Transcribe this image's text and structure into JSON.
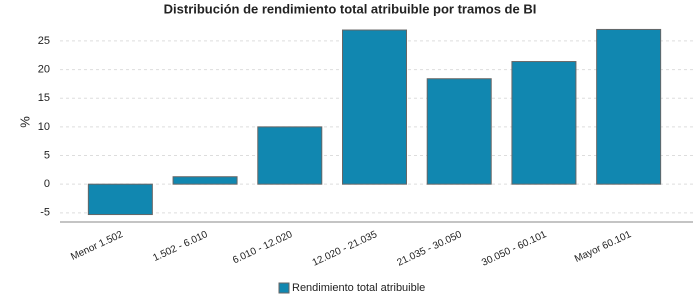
{
  "chart_data": {
    "type": "bar",
    "title": "Distribución de rendimiento total atribuible por tramos de BI",
    "y_label": "%",
    "categories": [
      "Menor 1.502",
      "1.502 - 6.010",
      "6.010 - 12.020",
      "12.020 - 21.035",
      "21.035 - 30.050",
      "30.050 - 60.101",
      "Mayor 60.101"
    ],
    "series": [
      {
        "name": "Rendimiento total atribuible",
        "color": "#1187b0",
        "values": [
          -5.3,
          1.3,
          10.0,
          26.9,
          18.4,
          21.4,
          27.0
        ]
      }
    ],
    "ylim": [
      -6.6,
      28.3
    ],
    "yticks": [
      -5,
      0,
      5,
      10,
      15,
      20,
      25
    ],
    "grid": true,
    "legend": "bottom"
  }
}
